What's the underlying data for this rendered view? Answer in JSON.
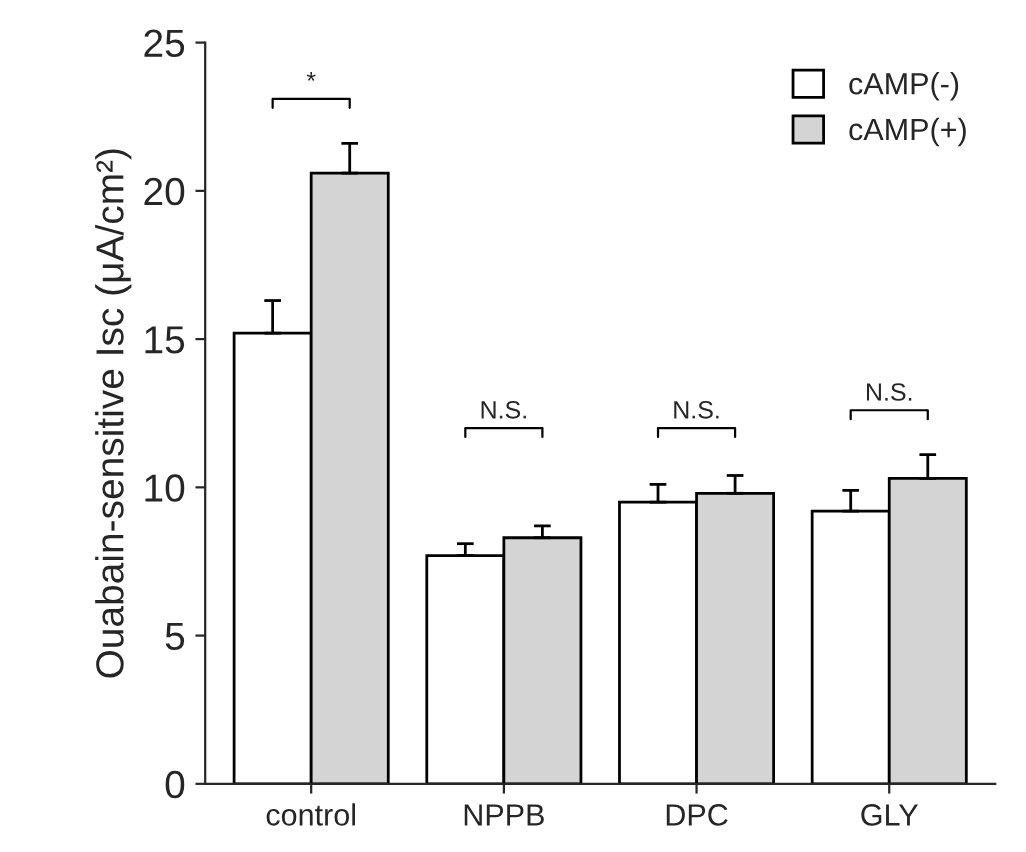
{
  "chart_data": {
    "type": "bar",
    "ylabel": "Ouabain-sensitive Isc (μA/cm²)",
    "categories": [
      "control",
      "NPPB",
      "DPC",
      "GLY"
    ],
    "series": [
      {
        "name": "cAMP(-)",
        "color": "#ffffff",
        "values": [
          15.2,
          7.7,
          9.5,
          9.2
        ],
        "errors": [
          [
            15.2,
            16.3
          ],
          [
            7.7,
            8.1
          ],
          [
            9.5,
            10.1
          ],
          [
            9.2,
            9.9
          ]
        ]
      },
      {
        "name": "cAMP(+)",
        "color": "#d4d4d4",
        "values": [
          20.6,
          8.3,
          9.8,
          10.3
        ],
        "errors": [
          [
            20.6,
            21.6
          ],
          [
            8.3,
            8.7
          ],
          [
            9.8,
            10.4
          ],
          [
            10.3,
            11.1
          ]
        ]
      }
    ],
    "ylim": [
      0,
      25
    ],
    "yticks": [
      0,
      5,
      10,
      15,
      20,
      25
    ],
    "grid": false,
    "legend": "top right",
    "annotations": [
      "*",
      "N.S.",
      "N.S.",
      "N.S."
    ]
  }
}
